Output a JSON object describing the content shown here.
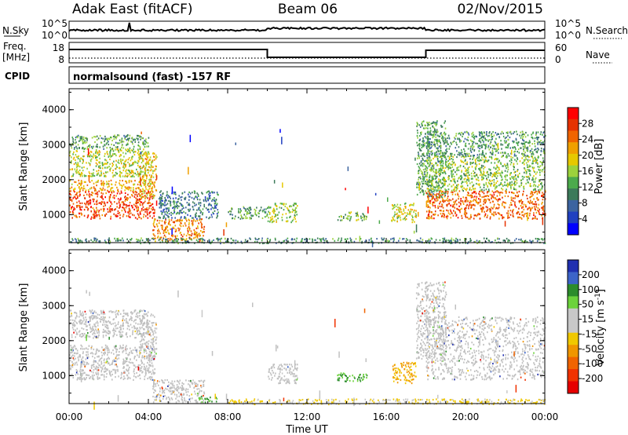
{
  "header": {
    "radar": "Adak East (fitACF)",
    "beam": "Beam 06",
    "date": "02/Nov/2015"
  },
  "sky_panel": {
    "left_label": "N.Sky",
    "right_label": "N.Search",
    "ticks_left": [
      "10^5",
      "10^0"
    ],
    "ticks_right": [
      "10^5",
      "10^0"
    ]
  },
  "freq_panel": {
    "left_label_1": "Freq.",
    "left_label_2": "[MHz]",
    "ticks_left": [
      "18",
      "8"
    ],
    "ticks_right": [
      "60",
      "0"
    ],
    "right_label": "Nave",
    "cpid_label": "CPID",
    "cpid_text": "normalsound (fast) -157 RF"
  },
  "colors": {
    "power": [
      "#0000ff",
      "#2040c0",
      "#3c64a0",
      "#3c7a5a",
      "#4caa4c",
      "#9cd23c",
      "#e6c800",
      "#f0a000",
      "#f06400",
      "#e63200",
      "#ff0000"
    ],
    "velocity": [
      "#2030b0",
      "#3c64c8",
      "#2c8c2c",
      "#6cd23c",
      "#c8c8c8",
      "#c8c8c8",
      "#f0c800",
      "#f09600",
      "#f06400",
      "#f03200",
      "#e60000"
    ],
    "ground_scatter": "#c0c0c0"
  },
  "chart_data": [
    {
      "type": "heatmap",
      "name": "power-panel",
      "ylabel": "Slant Range [km]",
      "yticks": [
        "1000",
        "2000",
        "3000",
        "4000"
      ],
      "ylim": [
        200,
        4600
      ],
      "xlim": [
        0,
        24
      ],
      "colorbar_label": "Power [dB]",
      "colorbar_ticks": [
        "4",
        "8",
        "12",
        "16",
        "20",
        "24",
        "28"
      ],
      "colorbar_range": [
        0,
        32
      ],
      "regions": [
        {
          "x": [
            0,
            4.3
          ],
          "y": [
            900,
            1700
          ],
          "value": 28
        },
        {
          "x": [
            0,
            4.3
          ],
          "y": [
            1700,
            2000
          ],
          "value": 22
        },
        {
          "x": [
            0,
            4.0
          ],
          "y": [
            2100,
            2900
          ],
          "value": 17
        },
        {
          "x": [
            0,
            4.0
          ],
          "y": [
            2900,
            3300
          ],
          "value": 12
        },
        {
          "x": [
            3.5,
            4.4
          ],
          "y": [
            1500,
            2800
          ],
          "value": 20
        },
        {
          "x": [
            4.2,
            6.8
          ],
          "y": [
            250,
            900
          ],
          "value": 24
        },
        {
          "x": [
            4.5,
            7.5
          ],
          "y": [
            900,
            1700
          ],
          "value": 8
        },
        {
          "x": [
            8,
            10
          ],
          "y": [
            900,
            1250
          ],
          "value": 12
        },
        {
          "x": [
            10,
            11.5
          ],
          "y": [
            800,
            1350
          ],
          "value": 16
        },
        {
          "x": [
            13.5,
            15
          ],
          "y": [
            850,
            1100
          ],
          "value": 14
        },
        {
          "x": [
            16.2,
            17.5
          ],
          "y": [
            800,
            1350
          ],
          "value": 18
        },
        {
          "x": [
            17.5,
            19
          ],
          "y": [
            1500,
            3700
          ],
          "value": 12
        },
        {
          "x": [
            18,
            24
          ],
          "y": [
            900,
            1700
          ],
          "value": 26
        },
        {
          "x": [
            18,
            24
          ],
          "y": [
            1700,
            2700
          ],
          "value": 15
        },
        {
          "x": [
            18,
            24
          ],
          "y": [
            2700,
            3400
          ],
          "value": 11
        },
        {
          "x": [
            0,
            24
          ],
          "y": [
            200,
            350
          ],
          "value": 10
        }
      ]
    },
    {
      "type": "heatmap",
      "name": "velocity-panel",
      "ylabel": "Slant Range [km]",
      "yticks": [
        "1000",
        "2000",
        "3000",
        "4000"
      ],
      "ylim": [
        200,
        4600
      ],
      "xlim": [
        0,
        24
      ],
      "xticks": [
        "00:00",
        "04:00",
        "08:00",
        "12:00",
        "16:00",
        "20:00",
        "00:00"
      ],
      "xlabel": "Time UT",
      "colorbar_label": "Velocity [m s^-1]",
      "colorbar_ticks": [
        "200",
        "100",
        "50",
        "15",
        "-15",
        "-50",
        "-100",
        "-200"
      ],
      "regions": [
        {
          "x": [
            0,
            4.3
          ],
          "y": [
            900,
            1900
          ],
          "value": 0
        },
        {
          "x": [
            0,
            4.0
          ],
          "y": [
            2100,
            2900
          ],
          "value": 0
        },
        {
          "x": [
            3.5,
            4.4
          ],
          "y": [
            1500,
            2800
          ],
          "value": 0
        },
        {
          "x": [
            4.2,
            6.8
          ],
          "y": [
            250,
            900
          ],
          "value": 0
        },
        {
          "x": [
            6.5,
            7.5
          ],
          "y": [
            250,
            400
          ],
          "value": 40
        },
        {
          "x": [
            10,
            11.5
          ],
          "y": [
            800,
            1350
          ],
          "value": 0
        },
        {
          "x": [
            13.5,
            15
          ],
          "y": [
            850,
            1100
          ],
          "value": 30
        },
        {
          "x": [
            16.3,
            17.5
          ],
          "y": [
            800,
            1400
          ],
          "value": -80
        },
        {
          "x": [
            17.5,
            19
          ],
          "y": [
            1500,
            3700
          ],
          "value": 0
        },
        {
          "x": [
            18,
            24
          ],
          "y": [
            900,
            2700
          ],
          "value": 0
        },
        {
          "x": [
            8,
            24
          ],
          "y": [
            200,
            350
          ],
          "value": -40
        }
      ]
    }
  ]
}
